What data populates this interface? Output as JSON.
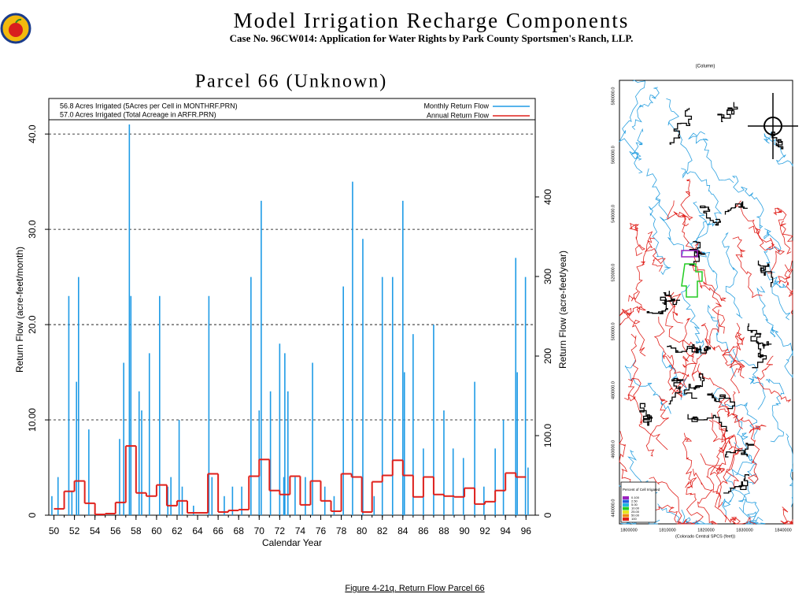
{
  "header": {
    "title": "Model Irrigation Recharge Components",
    "subtitle": "Case No. 96CW014: Application for Water Rights by Park County Sportsmen's Ranch, LLP."
  },
  "chart_data": {
    "type": "bar",
    "title": "Parcel 66 (Unknown)",
    "annotations": [
      "56.8 Acres Irrigated (5Acres per Cell in MONTHRF.PRN)",
      "57.0 Acres Irrigated (Total Acreage in ARFR.PRN)"
    ],
    "x_label": "Calendar Year",
    "y_label": "Return Flow (acre-feet/month)",
    "y2_label": "Return Flow (acre-feet/year)",
    "xlim": [
      49.5,
      96.9
    ],
    "xticks": [
      50,
      52,
      54,
      56,
      58,
      60,
      62,
      64,
      66,
      68,
      70,
      72,
      74,
      76,
      78,
      80,
      82,
      84,
      86,
      88,
      90,
      92,
      94,
      96
    ],
    "ylim": [
      0,
      41.5
    ],
    "yticks": [
      0,
      {
        "value": 10,
        "label": "10.00"
      },
      {
        "value": 20,
        "label": "20.0"
      },
      {
        "value": 30,
        "label": "30.0"
      },
      {
        "value": 40,
        "label": "40.0"
      }
    ],
    "y2lim": [
      0,
      497
    ],
    "y2ticks": [
      0,
      {
        "value": 100,
        "label": "100.0"
      },
      200,
      300,
      400
    ],
    "grid": true,
    "legend": "upper right",
    "series": [
      {
        "name": "Monthly Return Flow",
        "color": "#1e9be6",
        "type": "bar",
        "x": [
          49.8,
          50.4,
          51.45,
          51.75,
          52.2,
          52.4,
          53.4,
          56.4,
          56.8,
          57.35,
          57.5,
          58.3,
          58.55,
          59.3,
          60.3,
          61.1,
          61.4,
          62.2,
          62.5,
          63.6,
          65.1,
          65.4,
          66.6,
          67.4,
          68.3,
          69.2,
          70.0,
          70.2,
          71.1,
          72.0,
          72.4,
          72.5,
          72.8,
          73.5,
          74.5,
          75.2,
          76.4,
          77.3,
          78.2,
          79.1,
          80.1,
          81.2,
          82.0,
          83.0,
          84.0,
          84.15,
          85.0,
          86.0,
          87.0,
          88.0,
          88.9,
          89.9,
          91.0,
          91.9,
          93.0,
          93.8,
          95.0,
          95.15,
          95.95,
          96.2
        ],
        "values": [
          2,
          4,
          23,
          2.5,
          14,
          25,
          9,
          8,
          16,
          41,
          23,
          13,
          11,
          17,
          23,
          3,
          4,
          10,
          3,
          1,
          23,
          4,
          2,
          3,
          3,
          25,
          11,
          33,
          13,
          18,
          4,
          17,
          13,
          4,
          4,
          16,
          3,
          2,
          24,
          35,
          29,
          2,
          25,
          25,
          33,
          15,
          19,
          7,
          20,
          11,
          7,
          6,
          14,
          3,
          7,
          10,
          27,
          15,
          25,
          5
        ]
      },
      {
        "name": "Annual Return Flow",
        "color": "#e0201b",
        "type": "step",
        "axis": "y2",
        "x": [
          50,
          51,
          52,
          53,
          54,
          55,
          56,
          57,
          58,
          59,
          60,
          61,
          62,
          63,
          64,
          65,
          66,
          67,
          68,
          69,
          70,
          71,
          72,
          73,
          74,
          75,
          76,
          77,
          78,
          79,
          80,
          81,
          82,
          83,
          84,
          85,
          86,
          87,
          88,
          89,
          90,
          91,
          92,
          93,
          94,
          95
        ],
        "values": [
          8,
          30,
          43,
          15,
          1,
          2,
          16,
          87,
          28,
          24,
          38,
          12,
          18,
          3,
          3,
          52,
          4,
          6,
          7,
          49,
          70,
          31,
          26,
          49,
          13,
          43,
          18,
          5,
          52,
          48,
          4,
          42,
          50,
          69,
          50,
          23,
          48,
          26,
          24,
          23,
          34,
          14,
          17,
          31,
          53,
          48
        ]
      }
    ]
  },
  "caption": "Figure 4-21q.  Return Flow Parcel 66",
  "map": {
    "column_label": "(Column)",
    "x_labels": [
      "1800000",
      "1810000",
      "1820000",
      "1830000",
      "1840000"
    ],
    "x_title": "(Colorado Central SPCS (feet))",
    "y_labels": [
      "580000.0",
      "560000.0",
      "540000.0",
      "520000.0",
      "500000.0",
      "480000.0",
      "460000.0",
      "440000.0"
    ],
    "legend_title": "Percent of Cell Irrigated",
    "legend_items": [
      "0.100",
      "2.50",
      "5.00",
      "10.00",
      "25.00",
      "50.00",
      "100"
    ]
  }
}
